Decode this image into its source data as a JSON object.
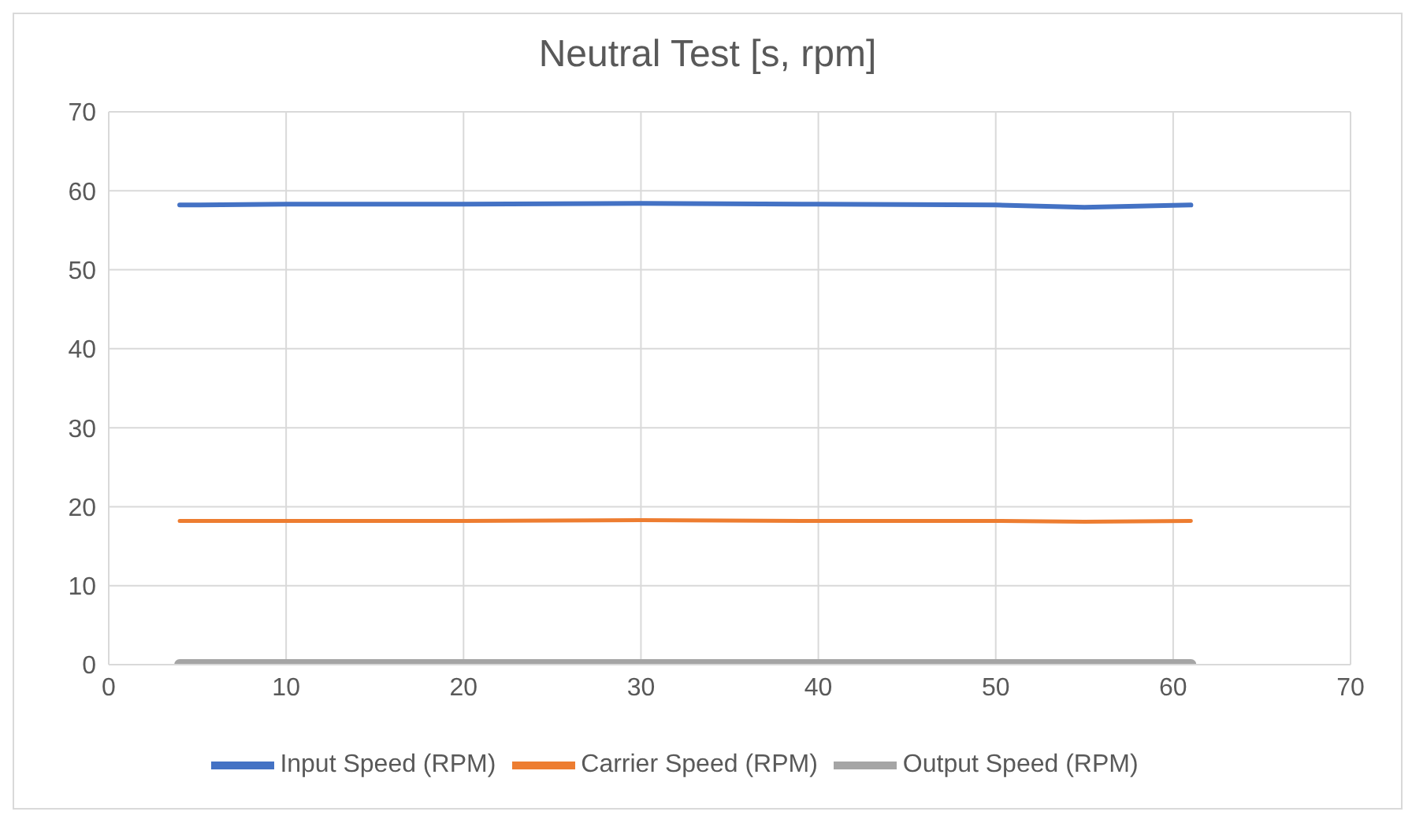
{
  "chart_data": {
    "type": "line",
    "title": "Neutral Test [s, rpm]",
    "x": [
      4,
      10,
      20,
      30,
      40,
      50,
      55,
      61
    ],
    "series": [
      {
        "name": "Input Speed (RPM)",
        "color": "#4472c4",
        "values": [
          58.2,
          58.3,
          58.3,
          58.4,
          58.3,
          58.2,
          57.9,
          58.2
        ]
      },
      {
        "name": "Carrier Speed (RPM)",
        "color": "#ed7d31",
        "values": [
          18.2,
          18.2,
          18.2,
          18.3,
          18.2,
          18.2,
          18.1,
          18.2
        ]
      },
      {
        "name": "Output Speed (RPM)",
        "color": "#a5a5a5",
        "values": [
          0,
          0,
          0,
          0,
          0,
          0,
          0,
          0
        ]
      }
    ],
    "xlim": [
      0,
      70
    ],
    "xticks": [
      0,
      10,
      20,
      30,
      40,
      50,
      60,
      70
    ],
    "ylim": [
      0,
      70
    ],
    "yticks": [
      0,
      10,
      20,
      30,
      40,
      50,
      60,
      70
    ],
    "grid": true,
    "legend": "bottom",
    "marker": "none",
    "line_style": "solid"
  }
}
